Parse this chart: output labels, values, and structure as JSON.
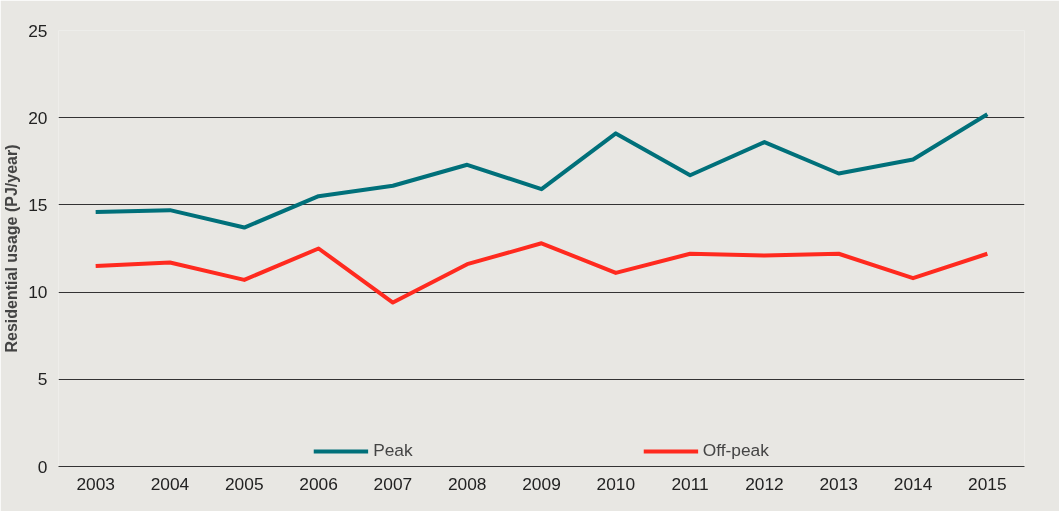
{
  "chart_data": {
    "type": "line",
    "ylabel": "Residential usage (PJ/year)",
    "categories": [
      "2003",
      "2004",
      "2005",
      "2006",
      "2007",
      "2008",
      "2009",
      "2010",
      "2011",
      "2012",
      "2013",
      "2014",
      "2015"
    ],
    "series": [
      {
        "name": "Peak",
        "color": "#00707a",
        "values": [
          14.6,
          14.7,
          13.7,
          15.5,
          16.1,
          17.3,
          15.9,
          19.1,
          16.7,
          18.6,
          16.8,
          17.6,
          20.2
        ]
      },
      {
        "name": "Off-peak",
        "color": "#ff2a1f",
        "values": [
          11.5,
          11.7,
          10.7,
          12.5,
          9.4,
          11.6,
          12.8,
          11.1,
          12.2,
          12.1,
          12.2,
          10.8,
          12.2
        ]
      }
    ],
    "ylim": [
      0,
      25
    ],
    "yticks": [
      0,
      5,
      10,
      15,
      20,
      25
    ],
    "grid": "y",
    "legend": "bottom",
    "marker": "none",
    "line_style": "solid"
  }
}
